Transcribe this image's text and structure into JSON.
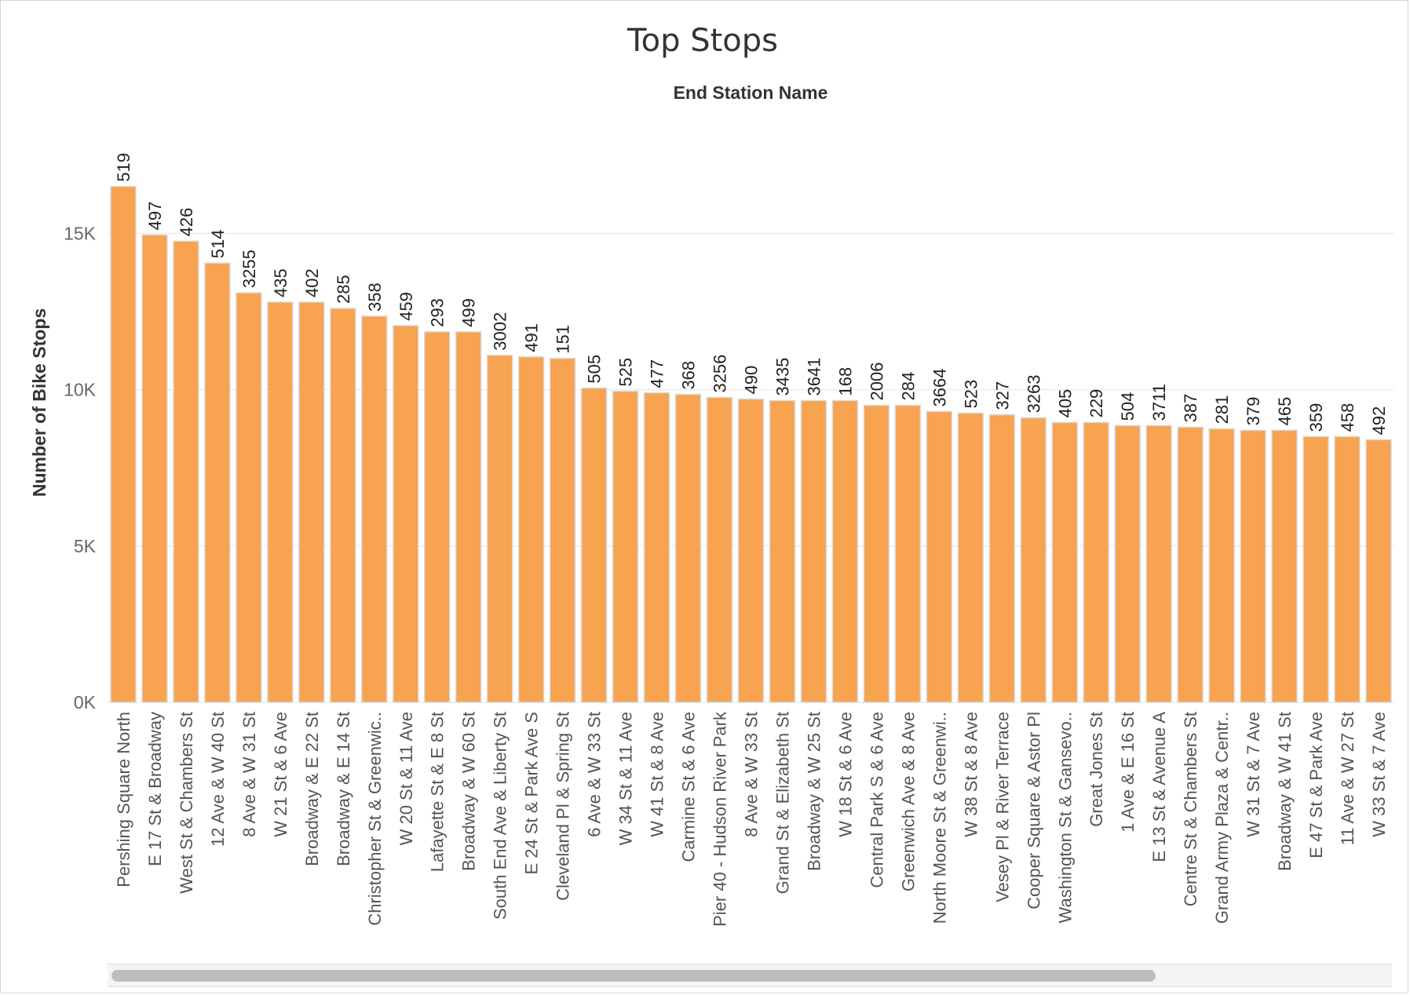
{
  "chart_data": {
    "type": "bar",
    "title": "Top Stops",
    "header": "End Station Name",
    "ylabel": "Number of Bike Stops",
    "xlabel": "",
    "ylim": [
      0,
      19000
    ],
    "yticks": [
      0,
      5000,
      10000,
      15000
    ],
    "ytick_labels": [
      "0K",
      "5K",
      "10K",
      "15K"
    ],
    "grid": true,
    "bar_color": "#F7A350",
    "categories": [
      "Pershing Square North",
      "E 17 St & Broadway",
      "West St & Chambers St",
      "12 Ave & W 40 St",
      "8 Ave & W 31 St",
      "W 21 St & 6 Ave",
      "Broadway & E 22 St",
      "Broadway & E 14 St",
      "Christopher St & Greenwic..",
      "W 20 St & 11 Ave",
      "Lafayette St & E 8 St",
      "Broadway & W 60 St",
      "South End Ave & Liberty St",
      "E 24 St & Park Ave S",
      "Cleveland Pl & Spring St",
      "6 Ave & W 33 St",
      "W 34 St & 11 Ave",
      "W 41 St & 8 Ave",
      "Carmine St & 6 Ave",
      "Pier 40 - Hudson River Park",
      "8 Ave & W 33 St",
      "Grand St & Elizabeth St",
      "Broadway & W 25 St",
      "W 18 St & 6 Ave",
      "Central Park S & 6 Ave",
      "Greenwich Ave & 8 Ave",
      "North Moore St & Greenwi..",
      "W 38 St & 8 Ave",
      "Vesey Pl & River Terrace",
      "Cooper Square & Astor Pl",
      "Washington St & Gansevo..",
      "Great Jones St",
      "1 Ave & E 16 St",
      "E 13 St & Avenue A",
      "Centre St & Chambers St",
      "Grand Army Plaza & Centr..",
      "W 31 St & 7 Ave",
      "Broadway & W 41 St",
      "E 47 St & Park Ave",
      "11 Ave & W 27 St",
      "W 33 St & 7 Ave"
    ],
    "values": [
      16500,
      14950,
      14750,
      14050,
      13100,
      12800,
      12800,
      12600,
      12350,
      12050,
      11850,
      11850,
      11100,
      11050,
      11000,
      10050,
      9950,
      9900,
      9850,
      9750,
      9700,
      9650,
      9650,
      9650,
      9500,
      9500,
      9300,
      9250,
      9200,
      9100,
      8950,
      8950,
      8850,
      8850,
      8800,
      8750,
      8700,
      8700,
      8500,
      8500,
      8400
    ],
    "data_labels": [
      "519",
      "497",
      "426",
      "514",
      "3255",
      "435",
      "402",
      "285",
      "358",
      "459",
      "293",
      "499",
      "3002",
      "491",
      "151",
      "505",
      "525",
      "477",
      "368",
      "3256",
      "490",
      "3435",
      "3641",
      "168",
      "2006",
      "284",
      "3664",
      "523",
      "327",
      "3263",
      "405",
      "229",
      "504",
      "3711",
      "387",
      "281",
      "379",
      "465",
      "359",
      "458",
      "492"
    ]
  }
}
